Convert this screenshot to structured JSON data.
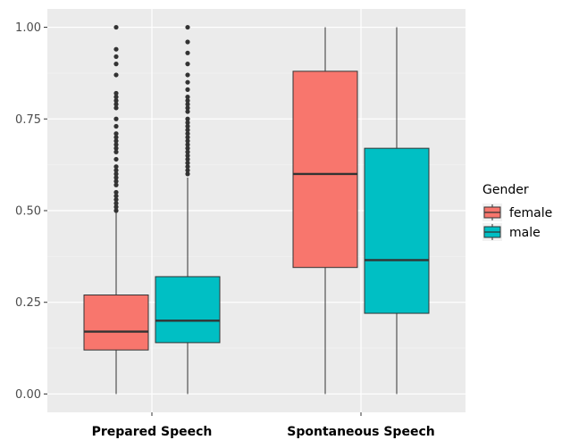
{
  "chart_data": {
    "type": "boxplot",
    "categories": [
      "Prepared Speech",
      "Spontaneous Speech"
    ],
    "ylim": [
      -0.05,
      1.05
    ],
    "yticks": [
      0.0,
      0.25,
      0.5,
      0.75,
      1.0
    ],
    "ytick_labels": [
      "0.00",
      "0.25",
      "0.50",
      "0.75",
      "1.00"
    ],
    "grid": true,
    "legend": {
      "title": "Gender",
      "position": "right",
      "entries": [
        "female",
        "male"
      ]
    },
    "colors": {
      "female": "#f8766d",
      "male": "#00bfc4"
    },
    "series": [
      {
        "name": "female",
        "boxes": [
          {
            "category": "Prepared Speech",
            "min": 0.0,
            "q1": 0.12,
            "median": 0.17,
            "q3": 0.27,
            "max": 0.495,
            "outliers": [
              0.5,
              0.51,
              0.52,
              0.53,
              0.54,
              0.55,
              0.57,
              0.58,
              0.59,
              0.6,
              0.61,
              0.62,
              0.64,
              0.66,
              0.67,
              0.68,
              0.69,
              0.7,
              0.71,
              0.73,
              0.75,
              0.78,
              0.79,
              0.8,
              0.81,
              0.82,
              0.87,
              0.9,
              0.92,
              0.94,
              1.0
            ]
          },
          {
            "category": "Spontaneous Speech",
            "min": 0.0,
            "q1": 0.345,
            "median": 0.6,
            "q3": 0.88,
            "max": 1.0,
            "outliers": []
          }
        ]
      },
      {
        "name": "male",
        "boxes": [
          {
            "category": "Prepared Speech",
            "min": 0.0,
            "q1": 0.14,
            "median": 0.2,
            "q3": 0.32,
            "max": 0.59,
            "outliers": [
              0.6,
              0.61,
              0.62,
              0.63,
              0.64,
              0.65,
              0.66,
              0.67,
              0.68,
              0.69,
              0.7,
              0.71,
              0.72,
              0.73,
              0.74,
              0.75,
              0.77,
              0.78,
              0.79,
              0.8,
              0.81,
              0.83,
              0.85,
              0.87,
              0.9,
              0.93,
              0.96,
              1.0
            ]
          },
          {
            "category": "Spontaneous Speech",
            "min": 0.0,
            "q1": 0.22,
            "median": 0.365,
            "q3": 0.67,
            "max": 1.0,
            "outliers": []
          }
        ]
      }
    ]
  }
}
